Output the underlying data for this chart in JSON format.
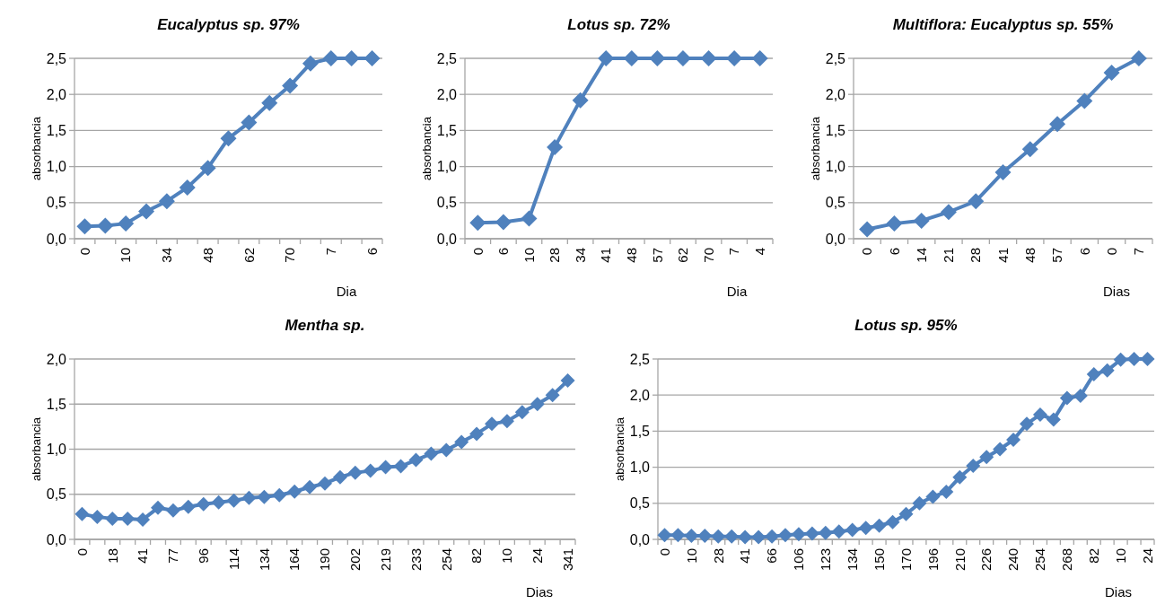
{
  "chart_data": [
    {
      "type": "line",
      "title": "Eucalyptus sp. 97%",
      "xlabel": "Dia",
      "ylabel": "absorbancia",
      "categories": [
        "0",
        null,
        "10",
        null,
        "34",
        null,
        "48",
        null,
        "62",
        null,
        "70",
        null,
        "7",
        null,
        "6"
      ],
      "series": [
        {
          "color": "#4f81bd",
          "values": [
            0.17,
            0.18,
            0.21,
            0.38,
            0.52,
            0.71,
            0.98,
            1.39,
            1.61,
            1.88,
            2.12,
            2.43,
            2.5,
            2.5,
            2.5
          ]
        }
      ],
      "ylim": [
        0,
        2.5
      ],
      "yticks": [
        {
          "value": 0,
          "label": "0,0"
        },
        {
          "value": 0.5,
          "label": "0,5"
        },
        {
          "value": 1,
          "label": "1,0"
        },
        {
          "value": 1.5,
          "label": "1,5"
        },
        {
          "value": 2,
          "label": "2,0"
        },
        {
          "value": 2.5,
          "label": "2,5"
        }
      ],
      "grid": "y",
      "marker": "diamond"
    },
    {
      "type": "line",
      "title": "Lotus sp. 72%",
      "xlabel": "Dia",
      "ylabel": "absorbancia",
      "categories": [
        "0",
        "6",
        "10",
        "28",
        "34",
        "41",
        "48",
        "57",
        "62",
        "70",
        "7",
        "4"
      ],
      "series": [
        {
          "color": "#4f81bd",
          "values": [
            0.22,
            0.23,
            0.28,
            1.27,
            1.92,
            2.5,
            2.5,
            2.5,
            2.5,
            2.5,
            2.5,
            2.5
          ]
        }
      ],
      "ylim": [
        0,
        2.5
      ],
      "yticks": [
        {
          "value": 0,
          "label": "0,0"
        },
        {
          "value": 0.5,
          "label": "0,5"
        },
        {
          "value": 1,
          "label": "1,0"
        },
        {
          "value": 1.5,
          "label": "1,5"
        },
        {
          "value": 2,
          "label": "2,0"
        },
        {
          "value": 2.5,
          "label": "2,5"
        }
      ],
      "grid": "y",
      "marker": "diamond"
    },
    {
      "type": "line",
      "title": "Multiflora: Eucalyptus sp. 55%",
      "xlabel": "Dias",
      "ylabel": "absorbancia",
      "categories": [
        "0",
        "6",
        "14",
        "21",
        "28",
        "41",
        "48",
        "57",
        "6",
        "0",
        "7"
      ],
      "series": [
        {
          "color": "#4f81bd",
          "values": [
            0.13,
            0.21,
            0.25,
            0.37,
            0.52,
            0.92,
            1.24,
            1.59,
            1.91,
            2.3,
            2.5
          ]
        }
      ],
      "ylim": [
        0,
        2.5
      ],
      "yticks": [
        {
          "value": 0,
          "label": "0,0"
        },
        {
          "value": 0.5,
          "label": "0,5"
        },
        {
          "value": 1,
          "label": "1,0"
        },
        {
          "value": 1.5,
          "label": "1,5"
        },
        {
          "value": 2,
          "label": "2,0"
        },
        {
          "value": 2.5,
          "label": "2,5"
        }
      ],
      "grid": "y",
      "marker": "diamond"
    },
    {
      "type": "line",
      "title": "Mentha sp.",
      "xlabel": "Dias",
      "ylabel": "absorbancia",
      "categories": [
        "0",
        null,
        "18",
        null,
        "41",
        null,
        "77",
        null,
        "96",
        null,
        "114",
        null,
        "134",
        null,
        "164",
        null,
        "190",
        null,
        "202",
        null,
        "219",
        null,
        "233",
        null,
        "254",
        null,
        "82",
        null,
        "10",
        null,
        "24",
        null,
        "341"
      ],
      "series": [
        {
          "color": "#4f81bd",
          "values": [
            0.28,
            0.25,
            0.23,
            0.23,
            0.22,
            0.35,
            0.32,
            0.36,
            0.39,
            0.41,
            0.43,
            0.46,
            0.47,
            0.49,
            0.53,
            0.58,
            0.62,
            0.69,
            0.74,
            0.76,
            0.8,
            0.81,
            0.88,
            0.95,
            0.99,
            1.08,
            1.17,
            1.28,
            1.31,
            1.41,
            1.5,
            1.6,
            1.76
          ]
        }
      ],
      "ylim": [
        0,
        2
      ],
      "yticks": [
        {
          "value": 0,
          "label": "0,0"
        },
        {
          "value": 0.5,
          "label": "0,5"
        },
        {
          "value": 1,
          "label": "1,0"
        },
        {
          "value": 1.5,
          "label": "1,5"
        },
        {
          "value": 2,
          "label": "2,0"
        }
      ],
      "grid": "y",
      "marker": "diamond"
    },
    {
      "type": "line",
      "title": "Lotus sp. 95%",
      "xlabel": "Dias",
      "ylabel": "absorbancia",
      "categories": [
        "0",
        null,
        "10",
        null,
        "28",
        null,
        "41",
        null,
        "66",
        null,
        "106",
        null,
        "123",
        null,
        "134",
        null,
        "150",
        null,
        "170",
        null,
        "196",
        null,
        "210",
        null,
        "226",
        null,
        "240",
        null,
        "254",
        null,
        "268",
        null,
        "82",
        null,
        "10",
        null,
        "24"
      ],
      "series": [
        {
          "color": "#4f81bd",
          "values": [
            0.06,
            0.06,
            0.05,
            0.05,
            0.04,
            0.04,
            0.03,
            0.03,
            0.04,
            0.06,
            0.07,
            0.08,
            0.09,
            0.11,
            0.13,
            0.16,
            0.19,
            0.24,
            0.35,
            0.5,
            0.59,
            0.66,
            0.86,
            1.02,
            1.14,
            1.25,
            1.38,
            1.6,
            1.73,
            1.66,
            1.96,
            1.99,
            2.29,
            2.34,
            2.49,
            2.5,
            2.5
          ]
        }
      ],
      "ylim": [
        0,
        2.5
      ],
      "yticks": [
        {
          "value": 0,
          "label": "0,0"
        },
        {
          "value": 0.5,
          "label": "0,5"
        },
        {
          "value": 1,
          "label": "1,0"
        },
        {
          "value": 1.5,
          "label": "1,5"
        },
        {
          "value": 2,
          "label": "2,0"
        },
        {
          "value": 2.5,
          "label": "2,5"
        }
      ],
      "grid": "y",
      "marker": "diamond"
    }
  ]
}
